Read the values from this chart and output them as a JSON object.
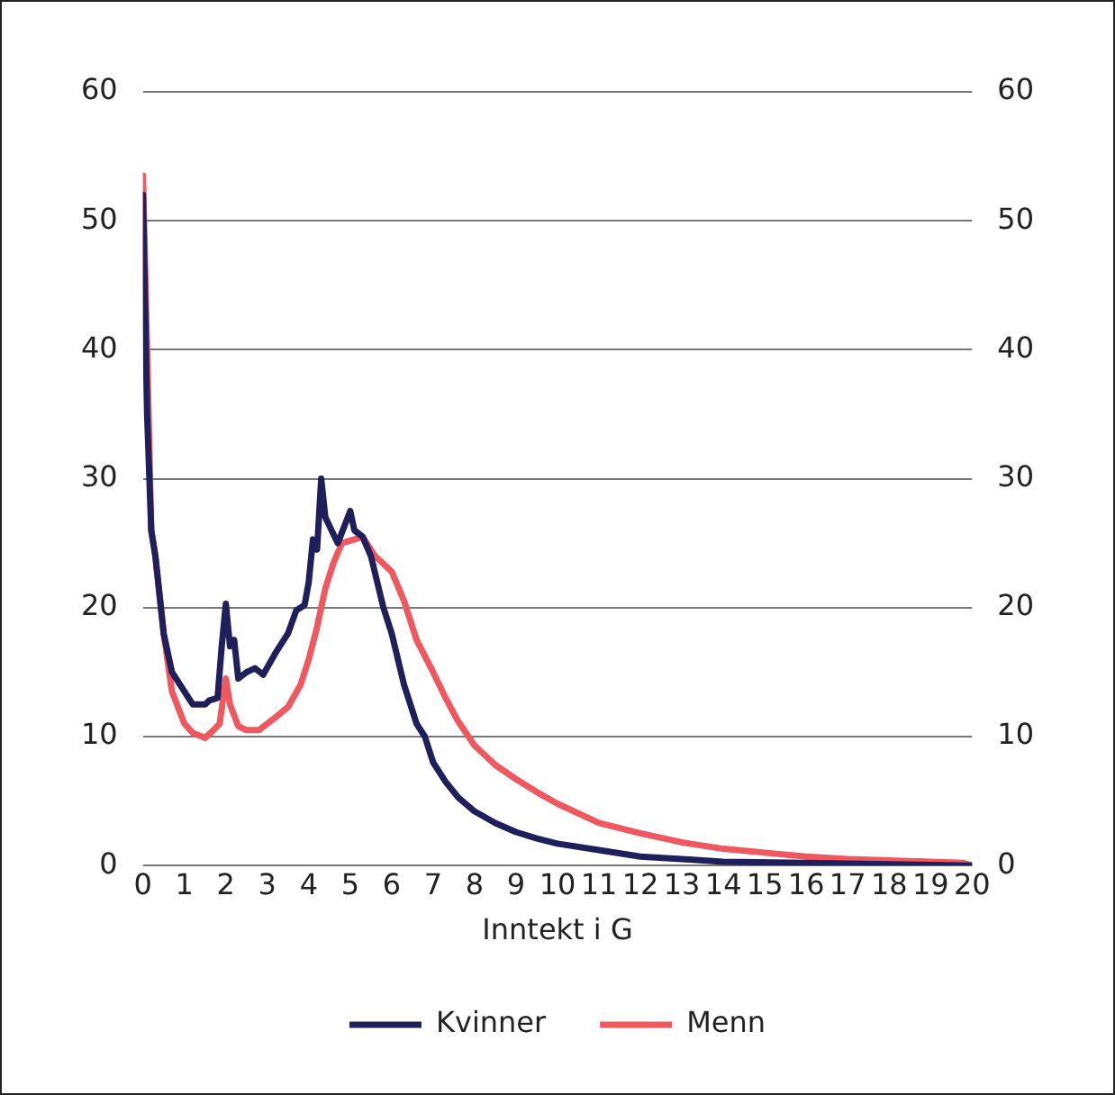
{
  "chart_data": {
    "type": "line",
    "xlabel": "Inntekt i G",
    "xlim": [
      0,
      20
    ],
    "xticks": [
      0,
      1,
      2,
      3,
      4,
      5,
      6,
      7,
      8,
      9,
      10,
      11,
      12,
      13,
      14,
      15,
      16,
      17,
      18,
      19,
      20
    ],
    "ylim": [
      0,
      60
    ],
    "yticks": [
      0,
      10,
      20,
      30,
      40,
      50,
      60
    ],
    "y2lim": [
      0,
      60
    ],
    "y2ticks": [
      0,
      10,
      20,
      30,
      40,
      50,
      60
    ],
    "grid": "y",
    "legend": "bottom",
    "marker": "none",
    "line_style": "solid",
    "series": [
      {
        "name": "Kvinner",
        "color": "#1f1f5c",
        "x": [
          0,
          0.1,
          0.2,
          0.3,
          0.5,
          0.7,
          1,
          1.2,
          1.5,
          1.6,
          1.8,
          1.9,
          2,
          2.1,
          2.2,
          2.3,
          2.5,
          2.7,
          2.9,
          3.2,
          3.5,
          3.7,
          3.9,
          4,
          4.1,
          4.2,
          4.3,
          4.4,
          4.7,
          5,
          5.1,
          5.3,
          5.5,
          5.8,
          6,
          6.3,
          6.6,
          6.8,
          7,
          7.3,
          7.6,
          8,
          8.5,
          9,
          9.5,
          10,
          11,
          12,
          13,
          14,
          16,
          18,
          20
        ],
        "values": [
          52,
          35,
          26,
          24,
          18,
          15,
          13.5,
          12.5,
          12.5,
          12.8,
          13,
          17,
          20.3,
          17,
          17.5,
          14.5,
          15,
          15.3,
          14.8,
          16.5,
          18,
          19.8,
          20.2,
          22,
          25.3,
          24.5,
          30,
          27,
          25,
          27.5,
          26,
          25.5,
          24,
          20,
          18,
          14,
          11,
          10,
          8,
          6.5,
          5.3,
          4.2,
          3.3,
          2.6,
          2.1,
          1.7,
          1.2,
          0.7,
          0.5,
          0.3,
          0.2,
          0.1,
          0
        ]
      },
      {
        "name": "Menn",
        "color": "#f0585f",
        "x": [
          0,
          0.1,
          0.2,
          0.3,
          0.5,
          0.7,
          1,
          1.2,
          1.5,
          1.7,
          1.85,
          2,
          2.1,
          2.3,
          2.5,
          2.8,
          3.2,
          3.5,
          3.8,
          4,
          4.2,
          4.4,
          4.6,
          4.8,
          5,
          5.3,
          5.6,
          6,
          6.3,
          6.6,
          7,
          7.3,
          7.6,
          8,
          8.5,
          9,
          9.5,
          10,
          11,
          12,
          13,
          14,
          15,
          16,
          17,
          18,
          19,
          19.8,
          20
        ],
        "values": [
          53.5,
          40,
          26,
          24,
          18,
          13.5,
          11,
          10.3,
          9.9,
          10.5,
          11,
          14.5,
          12.5,
          10.8,
          10.5,
          10.5,
          11.5,
          12.3,
          14,
          16,
          18.5,
          21.5,
          23.5,
          25,
          25.2,
          25.5,
          24,
          22.8,
          20.5,
          17.5,
          15,
          13,
          11.2,
          9.3,
          7.8,
          6.7,
          5.7,
          4.8,
          3.3,
          2.5,
          1.8,
          1.3,
          1,
          0.7,
          0.5,
          0.4,
          0.3,
          0.2,
          0
        ]
      }
    ]
  }
}
